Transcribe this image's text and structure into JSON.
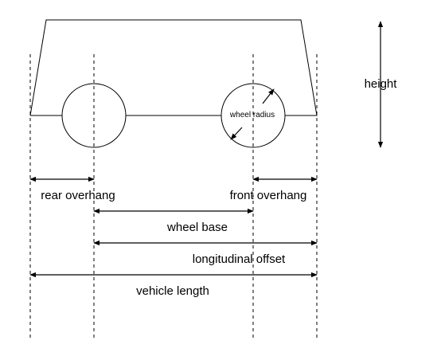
{
  "labels": {
    "height": "height",
    "wheel_radius": "wheel radius",
    "rear_overhang": "rear overhang",
    "front_overhang": "front overhang",
    "wheel_base": "wheel base",
    "longitudinal_offset": "longitudinal offset",
    "vehicle_length": "vehicle length"
  },
  "colors": {
    "stroke": "#000000",
    "background": "#ffffff"
  }
}
